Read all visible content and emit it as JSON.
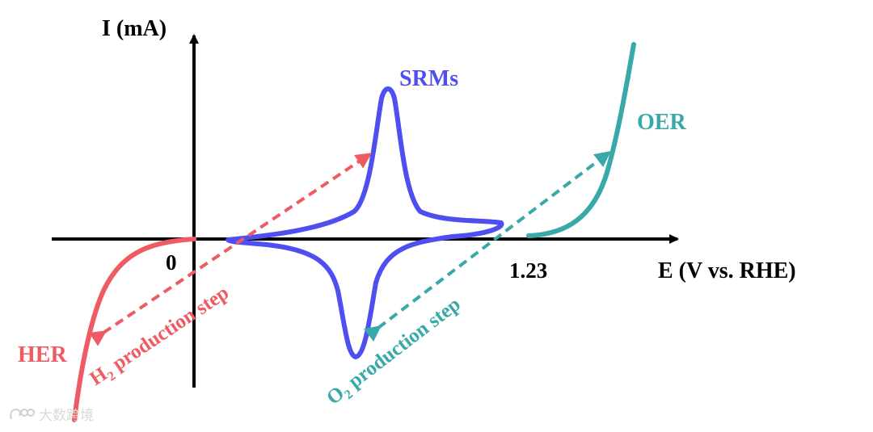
{
  "axes": {
    "y_label": "I (mA)",
    "x_label": "E (V vs. RHE)",
    "tick_zero": "0",
    "tick_123": "1.23"
  },
  "curves": {
    "her": {
      "label": "HER",
      "color": "#ef5b63"
    },
    "srms": {
      "label": "SRMs",
      "color": "#4f4ff0"
    },
    "oer": {
      "label": "OER",
      "color": "#38a8a8"
    }
  },
  "annotations": {
    "h2_step": {
      "prefix": "H",
      "subscript": "2",
      "suffix": " production step",
      "color": "#ef5b63"
    },
    "o2_step": {
      "prefix": "O",
      "subscript": "2",
      "suffix": " production step",
      "color": "#38a8a8"
    }
  },
  "watermark": {
    "text": "大数跨境"
  }
}
